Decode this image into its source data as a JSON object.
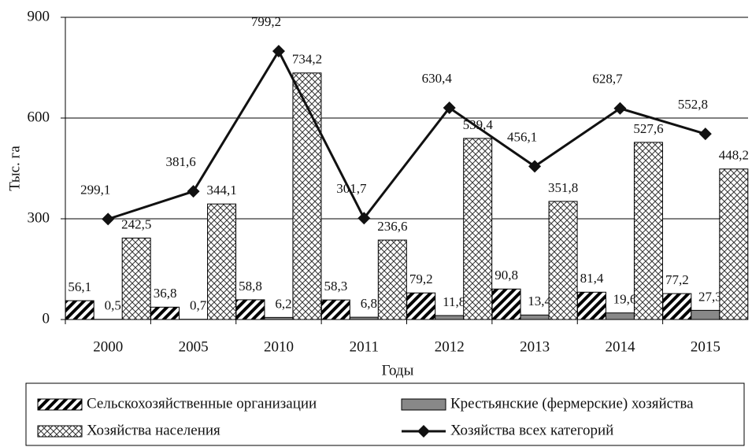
{
  "chart_data": {
    "type": "bar",
    "x_label": "Годы",
    "y_label": "Тыс. га",
    "categories": [
      "2000",
      "2005",
      "2010",
      "2011",
      "2012",
      "2013",
      "2014",
      "2015"
    ],
    "ylim": [
      0,
      900
    ],
    "yticks": [
      0,
      300,
      600,
      900
    ],
    "grid": true,
    "series": [
      {
        "name": "Сельскохозяйственные организации",
        "color": "#000000",
        "pattern": "hatch",
        "values": [
          56.1,
          36.8,
          58.8,
          58.3,
          79.2,
          90.8,
          81.4,
          77.2
        ],
        "value_labels": [
          "56,1",
          "36,8",
          "58,8",
          "58,3",
          "79,2",
          "90,8",
          "81,4",
          "77,2"
        ]
      },
      {
        "name": "Крестьянские (фермерские) хозяйства",
        "color": "#888888",
        "pattern": "solid",
        "values": [
          0.5,
          0.7,
          6.2,
          6.8,
          11.8,
          13.4,
          19.6,
          27.3
        ],
        "value_labels": [
          "0,5",
          "0,7",
          "6,2",
          "6,8",
          "11,8",
          "13,4",
          "19,6",
          "27,3"
        ]
      },
      {
        "name": "Хозяйства населения",
        "color": "#000000",
        "pattern": "crosshatch",
        "values": [
          242.5,
          344.1,
          734.2,
          236.6,
          539.4,
          351.8,
          527.6,
          448.2
        ],
        "value_labels": [
          "242,5",
          "344,1",
          "734,2",
          "236,6",
          "539,4",
          "351,8",
          "527,6",
          "448,2"
        ]
      },
      {
        "name": "Хозяйства всех категорий",
        "color": "#111111",
        "type": "line",
        "values": [
          299.1,
          381.6,
          799.2,
          301.7,
          630.4,
          456.1,
          628.7,
          552.8
        ],
        "value_labels": [
          "299,1",
          "381,6",
          "799,2",
          "301,7",
          "630,4",
          "456,1",
          "628,7",
          "552,8"
        ]
      }
    ]
  }
}
